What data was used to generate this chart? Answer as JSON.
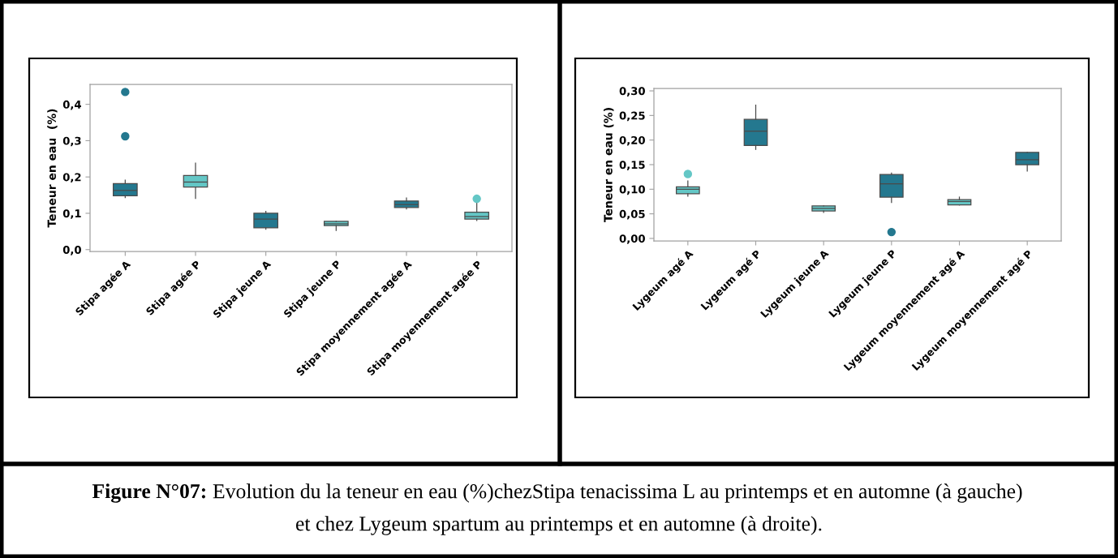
{
  "chart_data": [
    {
      "type": "box",
      "ylabel": "Teneur en eau  (%)",
      "categories": [
        "Stipa agée A",
        "Stipa agée P",
        "Stipa jeune A",
        "Stipa jeune P",
        "Stipa moyennement agée A",
        "Stipa moyennement agée P"
      ],
      "colors": [
        "#24788f",
        "#64c7c6",
        "#24788f",
        "#64c7c6",
        "#24788f",
        "#64c7c6"
      ],
      "boxes": [
        {
          "low": 0.143,
          "q1": 0.148,
          "median": 0.163,
          "q3": 0.182,
          "high": 0.191,
          "outliers": [
            0.312,
            0.434
          ]
        },
        {
          "low": 0.141,
          "q1": 0.172,
          "median": 0.186,
          "q3": 0.204,
          "high": 0.238
        },
        {
          "low": 0.056,
          "q1": 0.06,
          "median": 0.084,
          "q3": 0.1,
          "high": 0.105
        },
        {
          "low": 0.053,
          "q1": 0.066,
          "median": 0.071,
          "q3": 0.078,
          "high": 0.078
        },
        {
          "low": 0.112,
          "q1": 0.116,
          "median": 0.124,
          "q3": 0.134,
          "high": 0.142
        },
        {
          "low": 0.08,
          "q1": 0.084,
          "median": 0.091,
          "q3": 0.103,
          "high": 0.129,
          "outliers": [
            0.14
          ]
        }
      ],
      "ylim": [
        -0.005,
        0.455
      ],
      "yticks": [
        {
          "value": 0,
          "label": "0,0"
        },
        {
          "value": 0.1,
          "label": "0,1"
        },
        {
          "value": 0.2,
          "label": "0,2"
        },
        {
          "value": 0.3,
          "label": "0,3"
        },
        {
          "value": 0.4,
          "label": "0,4"
        }
      ]
    },
    {
      "type": "box",
      "ylabel": "Teneur en eau (%)",
      "categories": [
        "Lygeum agé A",
        "Lygeum agé P",
        "Lygeum jeune A",
        "Lygeum jeune P",
        "Lygeum moyennement agé A",
        "Lygeum moyennement agé P"
      ],
      "colors": [
        "#64c7c6",
        "#24788f",
        "#64c7c6",
        "#24788f",
        "#64c7c6",
        "#24788f"
      ],
      "boxes": [
        {
          "low": 0.086,
          "q1": 0.091,
          "median": 0.1,
          "q3": 0.105,
          "high": 0.117,
          "outliers": [
            0.131
          ]
        },
        {
          "low": 0.181,
          "q1": 0.189,
          "median": 0.218,
          "q3": 0.242,
          "high": 0.271
        },
        {
          "low": 0.053,
          "q1": 0.056,
          "median": 0.061,
          "q3": 0.066,
          "high": 0.066
        },
        {
          "low": 0.073,
          "q1": 0.084,
          "median": 0.111,
          "q3": 0.13,
          "high": 0.133,
          "outliers": [
            0.013
          ]
        },
        {
          "low": 0.068,
          "q1": 0.068,
          "median": 0.075,
          "q3": 0.079,
          "high": 0.084
        },
        {
          "low": 0.137,
          "q1": 0.15,
          "median": 0.16,
          "q3": 0.175,
          "high": 0.175
        }
      ],
      "ylim": [
        -0.005,
        0.305
      ],
      "yticks": [
        {
          "value": 0,
          "label": "0,00"
        },
        {
          "value": 0.05,
          "label": "0,05"
        },
        {
          "value": 0.1,
          "label": "0,10"
        },
        {
          "value": 0.15,
          "label": "0,15"
        },
        {
          "value": 0.2,
          "label": "0,20"
        },
        {
          "value": 0.25,
          "label": "0,25"
        },
        {
          "value": 0.3,
          "label": "0,30"
        }
      ]
    },
    {
      "type": "other",
      "title": "Figure N°07:",
      "annotations": [
        "Evolution du la teneur en eau (%)chezStipa tenacissima L au printemps et en automne (à gauche)",
        "et chez Lygeum spartum au printemps et en automne (à droite)."
      ]
    }
  ]
}
